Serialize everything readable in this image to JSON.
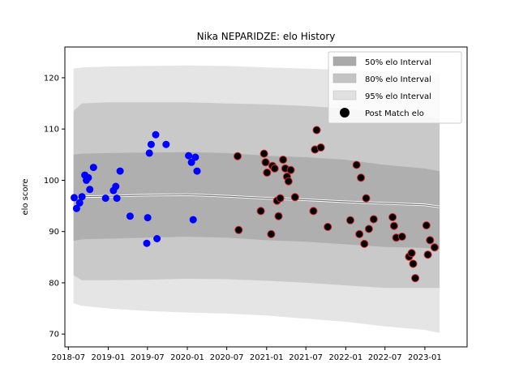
{
  "chart_data": {
    "type": "scatter",
    "title": "Nika NEPARIDZE: elo History",
    "xlabel": "",
    "ylabel": "elo score",
    "xlim": [
      "2018-06-15",
      "2023-07-15"
    ],
    "ylim": [
      67.5,
      126
    ],
    "x_ticks": [
      "2018-07",
      "2019-01",
      "2019-07",
      "2020-01",
      "2020-07",
      "2021-01",
      "2021-07",
      "2022-01",
      "2022-07",
      "2023-01"
    ],
    "y_ticks": [
      70,
      80,
      90,
      100,
      110,
      120
    ],
    "grid": false,
    "legend": {
      "position": "top-right",
      "entries": [
        "50% elo Interval",
        "80% elo Interval",
        "95% elo Interval",
        "Post Match elo"
      ]
    },
    "colors": {
      "band_50": "#aaaaaa",
      "band_80": "#c4c4c4",
      "band_95": "#e0e0e0",
      "center_line": "#777777",
      "point_blue": "#0000ff",
      "point_black": "#000000",
      "point_edge_red": "#cc2222"
    },
    "intervals": {
      "x": [
        "2018-07-25",
        "2018-09-01",
        "2019-01-01",
        "2019-07-01",
        "2020-01-01",
        "2020-07-01",
        "2021-01-01",
        "2021-07-01",
        "2022-01-01",
        "2022-07-01",
        "2023-01-01",
        "2023-03-10"
      ],
      "center": [
        96.6,
        96.8,
        96.9,
        97.1,
        97.2,
        96.9,
        96.5,
        96.2,
        95.8,
        95.5,
        95.2,
        94.8
      ],
      "p50": [
        [
          88.2,
          105.0
        ],
        [
          88.5,
          105.2
        ],
        [
          88.6,
          105.3
        ],
        [
          88.8,
          105.4
        ],
        [
          89.0,
          105.5
        ],
        [
          88.8,
          105.3
        ],
        [
          88.3,
          104.8
        ],
        [
          88.0,
          104.5
        ],
        [
          87.5,
          104.0
        ],
        [
          87.0,
          103.0
        ],
        [
          86.8,
          102.3
        ],
        [
          86.5,
          101.8
        ]
      ],
      "p80": [
        [
          81.5,
          113.5
        ],
        [
          80.5,
          115.0
        ],
        [
          80.5,
          115.2
        ],
        [
          80.6,
          115.2
        ],
        [
          80.8,
          115.2
        ],
        [
          80.7,
          115.0
        ],
        [
          80.4,
          114.8
        ],
        [
          80.0,
          114.5
        ],
        [
          79.5,
          114.0
        ],
        [
          79.0,
          113.0
        ],
        [
          79.0,
          112.5
        ],
        [
          79.0,
          112.0
        ]
      ],
      "p95": [
        [
          76.0,
          121.8
        ],
        [
          75.5,
          122.0
        ],
        [
          75.0,
          122.2
        ],
        [
          74.5,
          122.3
        ],
        [
          74.2,
          122.4
        ],
        [
          74.0,
          122.3
        ],
        [
          73.6,
          122.0
        ],
        [
          73.0,
          121.8
        ],
        [
          72.4,
          121.5
        ],
        [
          71.5,
          121.2
        ],
        [
          70.8,
          121.0
        ],
        [
          70.2,
          120.8
        ]
      ]
    },
    "series": [
      {
        "name": "Post Match elo",
        "style": "blue",
        "points": [
          [
            "2018-07-28",
            96.6
          ],
          [
            "2018-08-08",
            94.5
          ],
          [
            "2018-08-22",
            95.6
          ],
          [
            "2018-09-02",
            96.8
          ],
          [
            "2018-09-15",
            101.0
          ],
          [
            "2018-09-22",
            100.0
          ],
          [
            "2018-10-01",
            100.5
          ],
          [
            "2018-10-08",
            98.2
          ],
          [
            "2018-10-25",
            102.5
          ],
          [
            "2018-12-20",
            96.5
          ],
          [
            "2019-01-25",
            98.0
          ],
          [
            "2019-02-05",
            98.8
          ],
          [
            "2019-02-10",
            96.5
          ],
          [
            "2019-02-25",
            101.8
          ],
          [
            "2019-04-12",
            93.0
          ],
          [
            "2019-06-28",
            87.7
          ],
          [
            "2019-07-02",
            92.7
          ],
          [
            "2019-07-10",
            105.3
          ],
          [
            "2019-07-18",
            107.0
          ],
          [
            "2019-08-08",
            108.9
          ],
          [
            "2019-08-14",
            88.6
          ],
          [
            "2019-09-25",
            107.0
          ],
          [
            "2020-01-07",
            104.8
          ],
          [
            "2020-01-20",
            103.5
          ],
          [
            "2020-01-28",
            92.3
          ],
          [
            "2020-02-07",
            104.5
          ],
          [
            "2020-02-15",
            101.8
          ]
        ]
      },
      {
        "name": "Post Match elo",
        "style": "black",
        "points": [
          [
            "2020-08-20",
            104.7
          ],
          [
            "2020-08-25",
            90.3
          ],
          [
            "2020-12-05",
            94.0
          ],
          [
            "2020-12-20",
            105.2
          ],
          [
            "2020-12-27",
            103.5
          ],
          [
            "2021-01-03",
            101.5
          ],
          [
            "2021-01-22",
            89.5
          ],
          [
            "2021-01-28",
            102.8
          ],
          [
            "2021-02-07",
            102.3
          ],
          [
            "2021-02-18",
            96.0
          ],
          [
            "2021-02-25",
            93.0
          ],
          [
            "2021-03-05",
            96.5
          ],
          [
            "2021-03-18",
            104.0
          ],
          [
            "2021-03-28",
            102.3
          ],
          [
            "2021-04-05",
            100.7
          ],
          [
            "2021-04-12",
            99.8
          ],
          [
            "2021-04-22",
            102.0
          ],
          [
            "2021-05-12",
            96.7
          ],
          [
            "2021-08-05",
            94.0
          ],
          [
            "2021-08-12",
            106.0
          ],
          [
            "2021-08-20",
            109.8
          ],
          [
            "2021-09-08",
            106.4
          ],
          [
            "2021-10-10",
            90.9
          ],
          [
            "2022-01-22",
            92.2
          ],
          [
            "2022-02-20",
            103.0
          ],
          [
            "2022-03-05",
            89.5
          ],
          [
            "2022-03-12",
            100.5
          ],
          [
            "2022-03-28",
            87.6
          ],
          [
            "2022-04-05",
            96.5
          ],
          [
            "2022-04-18",
            90.5
          ],
          [
            "2022-05-10",
            92.4
          ],
          [
            "2022-08-05",
            92.8
          ],
          [
            "2022-08-12",
            91.1
          ],
          [
            "2022-08-22",
            88.8
          ],
          [
            "2022-09-18",
            89.0
          ],
          [
            "2022-10-20",
            85.1
          ],
          [
            "2022-11-01",
            85.8
          ],
          [
            "2022-11-08",
            83.7
          ],
          [
            "2022-11-18",
            80.9
          ],
          [
            "2023-01-08",
            91.2
          ],
          [
            "2023-01-15",
            85.5
          ],
          [
            "2023-01-25",
            88.3
          ],
          [
            "2023-02-15",
            86.9
          ]
        ]
      }
    ]
  }
}
